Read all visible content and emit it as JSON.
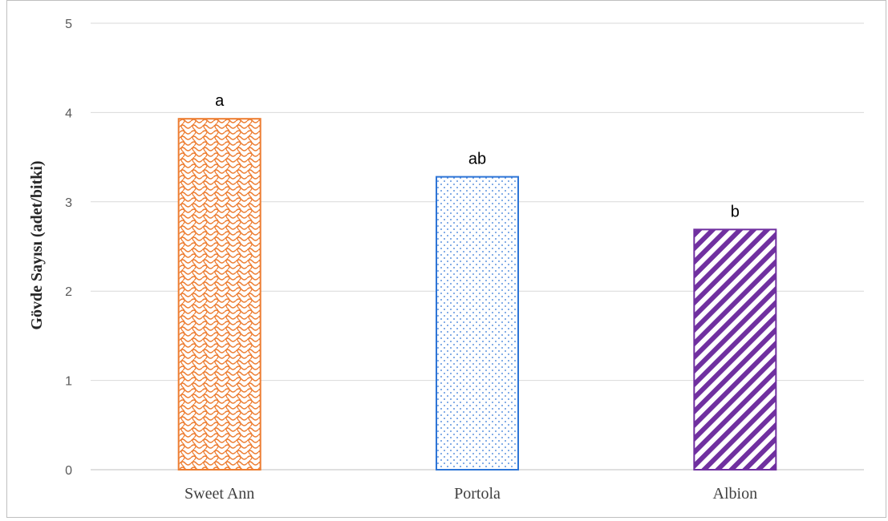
{
  "chart_data": {
    "type": "bar",
    "title": "",
    "xlabel": "",
    "ylabel": "Gövde Sayısı (adet/bitki)",
    "ylim": [
      0,
      5
    ],
    "yticks": [
      "0",
      "1",
      "2",
      "3",
      "4",
      "5"
    ],
    "grid": true,
    "categories": [
      "Sweet Ann",
      "Portola",
      "Albion"
    ],
    "values": [
      3.93,
      3.28,
      2.69
    ],
    "data_labels": [
      "a",
      "ab",
      "b"
    ],
    "colors": [
      "#ed7d31",
      "#2e75d6",
      "#7030a0"
    ],
    "patterns": [
      "wave-crosshatch",
      "dots",
      "diagonal-stripes"
    ]
  }
}
